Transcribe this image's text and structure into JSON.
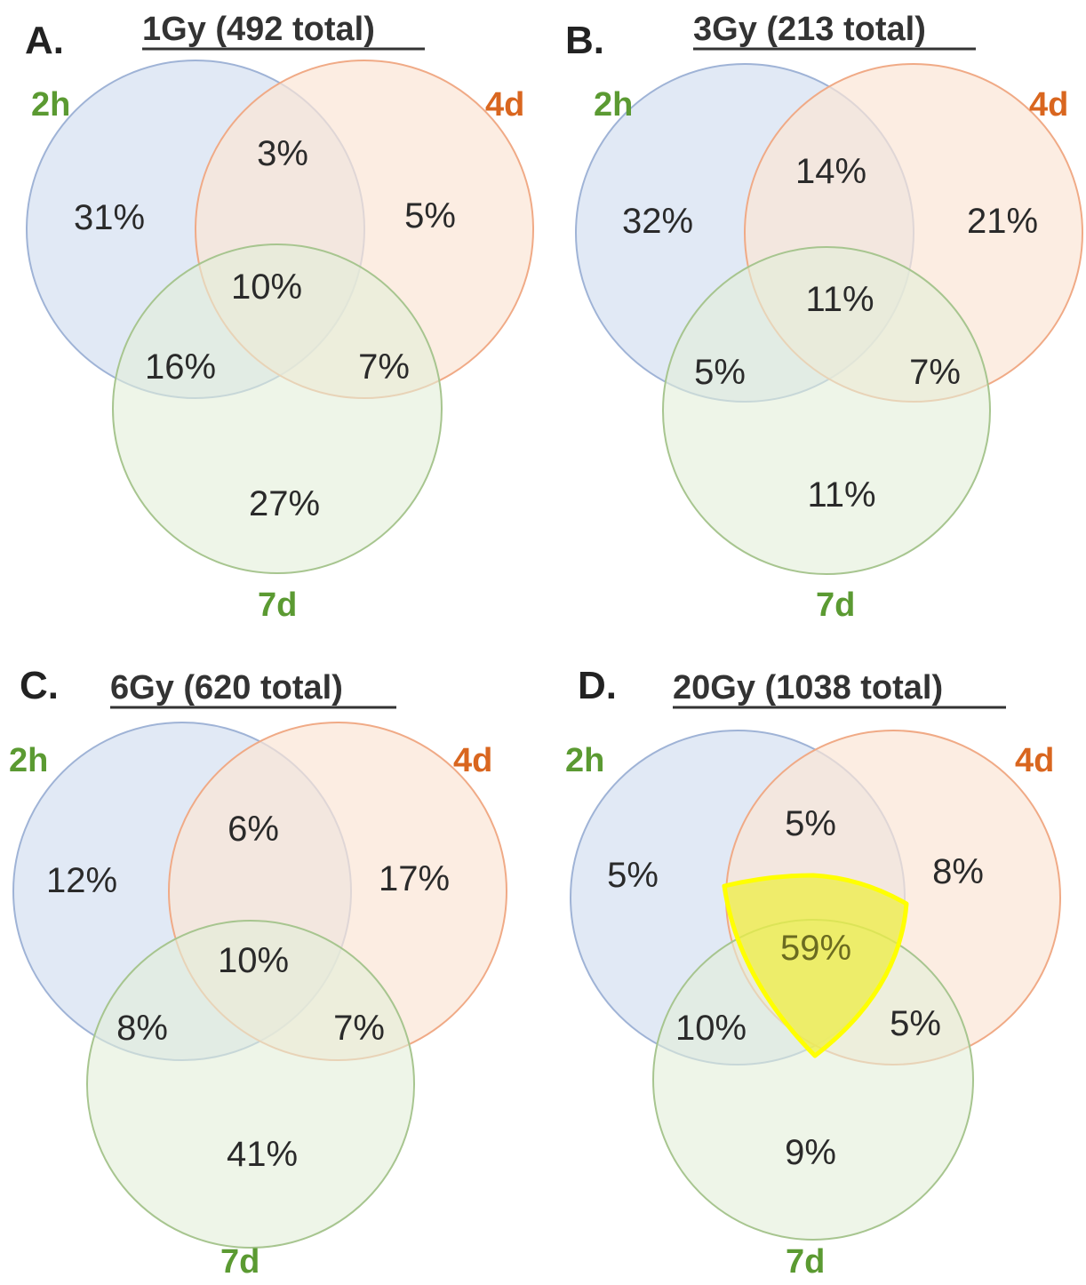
{
  "colors": {
    "circle_2h_fill": "#dae3f3",
    "circle_2h_stroke": "#9fb3d6",
    "circle_4d_fill": "#fbe5d6",
    "circle_4d_stroke": "#f0aa86",
    "circle_7d_fill": "#e2efd9",
    "circle_7d_stroke": "#a7c58f",
    "label_2h": "#5b9a32",
    "label_4d": "#d9661f",
    "label_7d": "#5b9a32",
    "highlight": "#ffff00",
    "highlight_fill": "#eeee44"
  },
  "panels": [
    {
      "letter": "A.",
      "title": "1Gy (492 total)",
      "sets": {
        "a": "2h",
        "b": "4d",
        "c": "7d"
      },
      "regions": {
        "a_only": "31%",
        "ab": "3%",
        "b_only": "5%",
        "abc": "10%",
        "ac": "16%",
        "bc": "7%",
        "c_only": "27%"
      }
    },
    {
      "letter": "B.",
      "title": "3Gy (213 total)",
      "sets": {
        "a": "2h",
        "b": "4d",
        "c": "7d"
      },
      "regions": {
        "a_only": "32%",
        "ab": "14%",
        "b_only": "21%",
        "abc": "11%",
        "ac": "5%",
        "bc": "7%",
        "c_only": "11%"
      }
    },
    {
      "letter": "C.",
      "title": "6Gy (620 total)",
      "sets": {
        "a": "2h",
        "b": "4d",
        "c": "7d"
      },
      "regions": {
        "a_only": "12%",
        "ab": "6%",
        "b_only": "17%",
        "abc": "10%",
        "ac": "8%",
        "bc": "7%",
        "c_only": "41%"
      }
    },
    {
      "letter": "D.",
      "title": "20Gy (1038 total)",
      "sets": {
        "a": "2h",
        "b": "4d",
        "c": "7d"
      },
      "regions": {
        "a_only": "5%",
        "ab": "5%",
        "b_only": "8%",
        "abc": "59%",
        "ac": "10%",
        "bc": "5%",
        "c_only": "9%"
      },
      "highlighted_region": "abc"
    }
  ]
}
